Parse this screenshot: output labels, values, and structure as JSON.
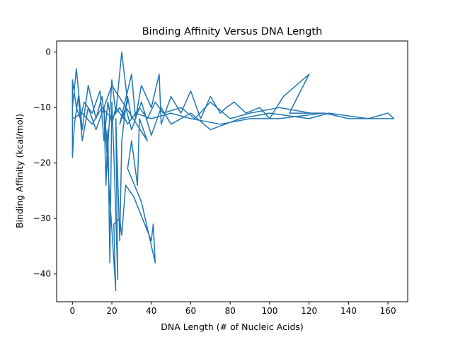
{
  "chart_data": {
    "type": "line",
    "title": "Binding Affinity Versus DNA Length",
    "xlabel": "DNA Length (# of Nucleic Acids)",
    "ylabel": "Binding Affinity (kcal/mol)",
    "xlim": [
      -8,
      170
    ],
    "ylim": [
      -45,
      2
    ],
    "xticks": [
      0,
      20,
      40,
      60,
      80,
      100,
      120,
      140,
      160
    ],
    "yticks": [
      0,
      -10,
      -20,
      -30,
      -40
    ],
    "grid": false,
    "legend": "none",
    "series": [
      {
        "color": "#1f77b4",
        "points": [
          [
            0,
            -10
          ],
          [
            2,
            -3
          ],
          [
            5,
            -14
          ],
          [
            8,
            -6
          ],
          [
            12,
            -12
          ],
          [
            15,
            -8
          ],
          [
            18,
            -17
          ],
          [
            20,
            -5
          ],
          [
            22,
            -11
          ],
          [
            25,
            0
          ],
          [
            26,
            -3
          ],
          [
            28,
            -9
          ],
          [
            24,
            -13
          ],
          [
            30,
            -4
          ],
          [
            32,
            -12
          ],
          [
            35,
            -6
          ],
          [
            40,
            -10
          ],
          [
            44,
            -4
          ],
          [
            45,
            -13
          ],
          [
            50,
            -8
          ],
          [
            55,
            -11
          ],
          [
            60,
            -7
          ],
          [
            65,
            -12
          ],
          [
            70,
            -8
          ],
          [
            75,
            -11
          ],
          [
            78,
            -10
          ],
          [
            82,
            -9
          ],
          [
            88,
            -11
          ],
          [
            95,
            -10
          ],
          [
            100,
            -12
          ],
          [
            107,
            -8
          ],
          [
            120,
            -4
          ],
          [
            110,
            -11
          ],
          [
            128,
            -11
          ],
          [
            140,
            -12
          ],
          [
            155,
            -12
          ],
          [
            163,
            -12
          ],
          [
            160,
            -11
          ],
          [
            150,
            -12
          ],
          [
            130,
            -11
          ],
          [
            120,
            -12
          ],
          [
            100,
            -11
          ],
          [
            85,
            -12
          ],
          [
            70,
            -14
          ],
          [
            60,
            -11
          ],
          [
            50,
            -13
          ],
          [
            45,
            -10
          ],
          [
            40,
            -15
          ],
          [
            35,
            -9
          ],
          [
            30,
            -14
          ],
          [
            27,
            -10
          ],
          [
            25,
            -16
          ],
          [
            24,
            -34
          ],
          [
            22,
            -12
          ],
          [
            23,
            -41
          ],
          [
            21,
            -18
          ],
          [
            20,
            -9
          ],
          [
            19,
            -38
          ],
          [
            18,
            -14
          ],
          [
            17,
            -24
          ],
          [
            16,
            -10
          ],
          [
            22,
            -43
          ],
          [
            21,
            -31
          ],
          [
            24,
            -30
          ],
          [
            25,
            -33
          ],
          [
            27,
            -24
          ],
          [
            31,
            -26
          ],
          [
            40,
            -34
          ],
          [
            41,
            -31
          ],
          [
            42,
            -38
          ],
          [
            35,
            -27
          ],
          [
            28,
            -21
          ],
          [
            30,
            -16
          ],
          [
            33,
            -24
          ],
          [
            34,
            -12
          ],
          [
            38,
            -16
          ],
          [
            20,
            -6
          ],
          [
            12,
            -14
          ],
          [
            8,
            -10
          ],
          [
            5,
            -16
          ],
          [
            3,
            -8
          ],
          [
            1,
            -13
          ],
          [
            0,
            -19
          ],
          [
            0,
            -5
          ],
          [
            2,
            -10
          ],
          [
            4,
            -12
          ],
          [
            6,
            -9
          ],
          [
            10,
            -11
          ],
          [
            14,
            -7
          ],
          [
            16,
            -16
          ],
          [
            18,
            -9
          ],
          [
            20,
            -13
          ],
          [
            22,
            -10
          ],
          [
            26,
            -12
          ],
          [
            28,
            -8
          ],
          [
            30,
            -12
          ],
          [
            34,
            -10
          ],
          [
            38,
            -12
          ],
          [
            42,
            -9
          ],
          [
            46,
            -11
          ],
          [
            55,
            -10
          ],
          [
            62,
            -12
          ],
          [
            70,
            -9
          ],
          [
            80,
            -12
          ],
          [
            90,
            -11
          ],
          [
            105,
            -10
          ],
          [
            121,
            -11
          ],
          [
            127,
            -11
          ],
          [
            105,
            -12
          ],
          [
            90,
            -12
          ],
          [
            75,
            -13
          ],
          [
            60,
            -12
          ],
          [
            50,
            -11
          ],
          [
            40,
            -12
          ],
          [
            32,
            -11
          ],
          [
            28,
            -13
          ],
          [
            24,
            -10
          ],
          [
            20,
            -12
          ],
          [
            15,
            -10
          ],
          [
            10,
            -13
          ],
          [
            5,
            -11
          ],
          [
            0,
            -12
          ]
        ]
      }
    ]
  }
}
